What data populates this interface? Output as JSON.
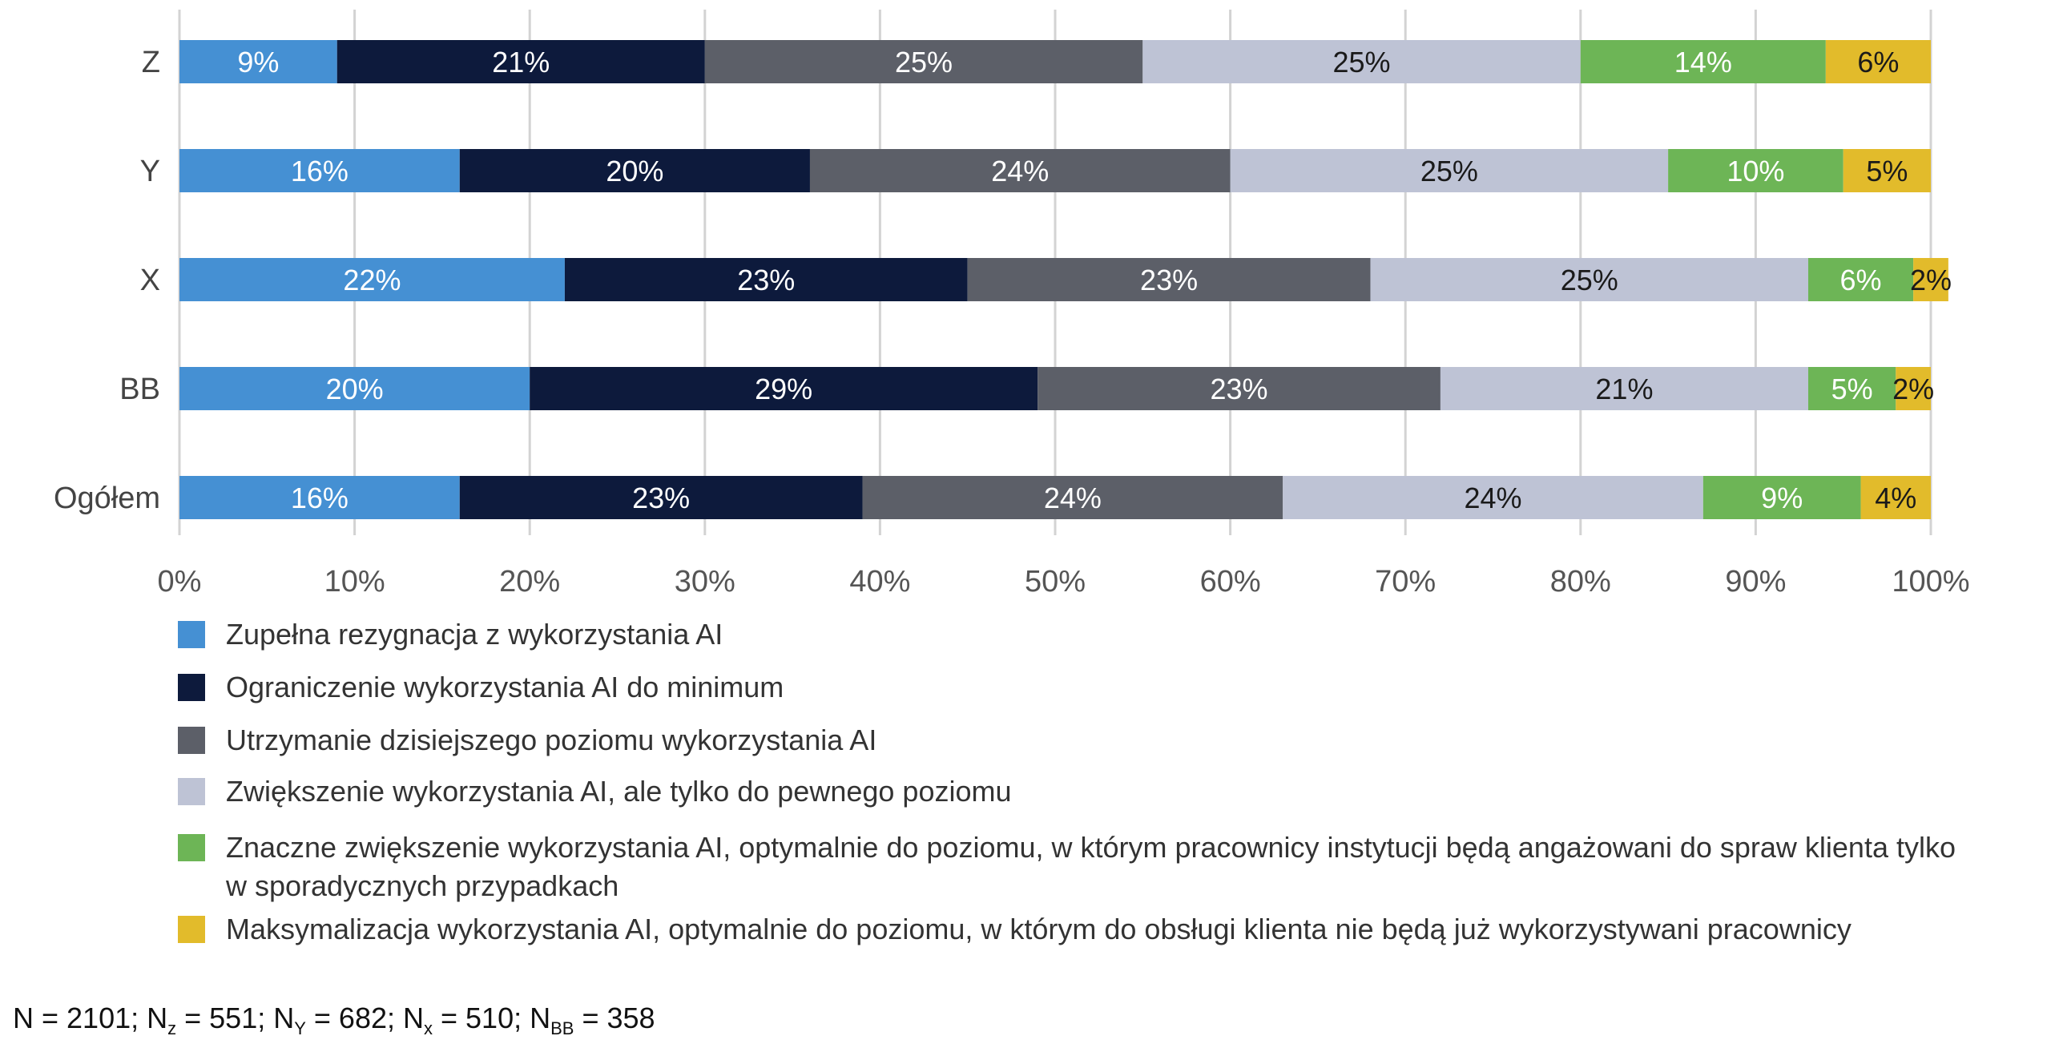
{
  "chart_data": {
    "type": "bar",
    "orientation": "horizontal",
    "stacked": true,
    "categories": [
      "Z",
      "Y",
      "X",
      "BB",
      "Ogółem"
    ],
    "series": [
      {
        "name": "Zupełna rezygnacja z wykorzystania AI",
        "color": "#4590d3",
        "values": [
          9,
          16,
          22,
          20,
          16
        ],
        "labels": [
          "9%",
          "16%",
          "22%",
          "20%",
          "16%"
        ]
      },
      {
        "name": "Ograniczenie wykorzystania AI do minimum",
        "color": "#0d1a3c",
        "values": [
          21,
          20,
          23,
          29,
          23
        ],
        "labels": [
          "21%",
          "20%",
          "23%",
          "29%",
          "23%"
        ]
      },
      {
        "name": "Utrzymanie dzisiejszego poziomu wykorzystania AI",
        "color": "#5c5f68",
        "values": [
          25,
          24,
          23,
          23,
          24
        ],
        "labels": [
          "25%",
          "24%",
          "23%",
          "23%",
          "24%"
        ]
      },
      {
        "name": "Zwiększenie wykorzystania AI, ale tylko do pewnego poziomu",
        "color": "#bec3d5",
        "values": [
          25,
          25,
          25,
          21,
          24
        ],
        "labels": [
          "25%",
          "25%",
          "25%",
          "21%",
          "24%"
        ]
      },
      {
        "name": "Znaczne zwiększenie wykorzystania AI, optymalnie do poziomu, w którym pracownicy instytucji będą angażowani do spraw klienta tylko w sporadycznych przypadkach",
        "color": "#6db556",
        "values": [
          14,
          10,
          6,
          5,
          9
        ],
        "labels": [
          "14%",
          "10%",
          "6%",
          "5%",
          "9%"
        ]
      },
      {
        "name": "Maksymalizacja wykorzystania AI, optymalnie do poziomu, w którym do obsługi klienta nie będą już wykorzystywani pracownicy",
        "color": "#e2bb2b",
        "values": [
          6,
          5,
          2,
          2,
          4
        ],
        "labels": [
          "6%",
          "5%",
          "2%",
          "2%",
          "4%"
        ]
      }
    ],
    "xlim": [
      0,
      100
    ],
    "xticks": [
      0,
      10,
      20,
      30,
      40,
      50,
      60,
      70,
      80,
      90,
      100
    ],
    "xtick_labels": [
      "0%",
      "10%",
      "20%",
      "30%",
      "40%",
      "50%",
      "60%",
      "70%",
      "80%",
      "90%",
      "100%"
    ],
    "grid": true,
    "legend_position": "bottom",
    "title": "",
    "xlabel": "",
    "ylabel": ""
  },
  "footnote": {
    "n_total": "N = 2101; N",
    "z_sub": "z",
    "z_val": " = 551; N",
    "y_sub": "Y",
    "y_val": " = 682; N",
    "x_sub": "x",
    "x_val": " = 510; N",
    "bb_sub": "BB",
    "bb_val": " = 358"
  }
}
